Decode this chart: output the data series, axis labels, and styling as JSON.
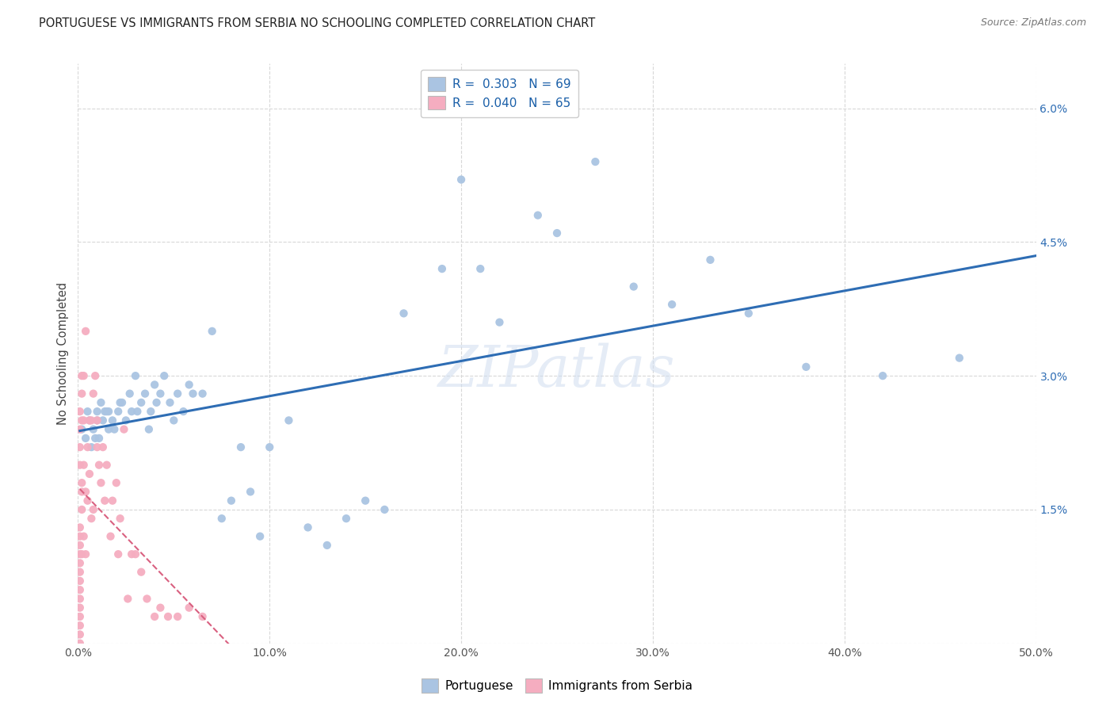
{
  "title": "PORTUGUESE VS IMMIGRANTS FROM SERBIA NO SCHOOLING COMPLETED CORRELATION CHART",
  "source": "Source: ZipAtlas.com",
  "ylabel": "No Schooling Completed",
  "xlim": [
    0,
    0.5
  ],
  "ylim": [
    0,
    0.065
  ],
  "xticks": [
    0.0,
    0.1,
    0.2,
    0.3,
    0.4,
    0.5
  ],
  "yticks": [
    0.0,
    0.015,
    0.03,
    0.045,
    0.06
  ],
  "ytick_labels": [
    "",
    "1.5%",
    "3.0%",
    "4.5%",
    "6.0%"
  ],
  "xtick_labels": [
    "0.0%",
    "10.0%",
    "20.0%",
    "30.0%",
    "40.0%",
    "50.0%"
  ],
  "legend_portuguese_R": "0.303",
  "legend_portuguese_N": "69",
  "legend_serbia_R": "0.040",
  "legend_serbia_N": "65",
  "portuguese_color": "#aac4e2",
  "serbia_color": "#f5adc0",
  "trendline_portuguese_color": "#2e6db4",
  "trendline_serbia_color": "#d96080",
  "background_color": "#ffffff",
  "grid_color": "#d8d8d8",
  "portuguese_x": [
    0.002,
    0.004,
    0.005,
    0.006,
    0.007,
    0.008,
    0.009,
    0.01,
    0.01,
    0.011,
    0.012,
    0.013,
    0.014,
    0.015,
    0.016,
    0.016,
    0.018,
    0.019,
    0.021,
    0.022,
    0.023,
    0.025,
    0.027,
    0.028,
    0.03,
    0.031,
    0.033,
    0.035,
    0.037,
    0.038,
    0.04,
    0.041,
    0.043,
    0.045,
    0.048,
    0.05,
    0.052,
    0.055,
    0.058,
    0.06,
    0.065,
    0.07,
    0.075,
    0.08,
    0.085,
    0.09,
    0.095,
    0.1,
    0.11,
    0.12,
    0.13,
    0.14,
    0.15,
    0.16,
    0.17,
    0.19,
    0.2,
    0.21,
    0.22,
    0.24,
    0.25,
    0.27,
    0.29,
    0.31,
    0.33,
    0.35,
    0.38,
    0.42,
    0.46
  ],
  "portuguese_y": [
    0.024,
    0.023,
    0.026,
    0.025,
    0.022,
    0.024,
    0.023,
    0.026,
    0.025,
    0.023,
    0.027,
    0.025,
    0.026,
    0.026,
    0.026,
    0.024,
    0.025,
    0.024,
    0.026,
    0.027,
    0.027,
    0.025,
    0.028,
    0.026,
    0.03,
    0.026,
    0.027,
    0.028,
    0.024,
    0.026,
    0.029,
    0.027,
    0.028,
    0.03,
    0.027,
    0.025,
    0.028,
    0.026,
    0.029,
    0.028,
    0.028,
    0.035,
    0.014,
    0.016,
    0.022,
    0.017,
    0.012,
    0.022,
    0.025,
    0.013,
    0.011,
    0.014,
    0.016,
    0.015,
    0.037,
    0.042,
    0.052,
    0.042,
    0.036,
    0.048,
    0.046,
    0.054,
    0.04,
    0.038,
    0.043,
    0.037,
    0.031,
    0.03,
    0.032
  ],
  "serbia_x": [
    0.001,
    0.001,
    0.001,
    0.001,
    0.001,
    0.001,
    0.001,
    0.001,
    0.001,
    0.001,
    0.001,
    0.001,
    0.001,
    0.001,
    0.001,
    0.001,
    0.001,
    0.001,
    0.002,
    0.002,
    0.002,
    0.002,
    0.002,
    0.002,
    0.002,
    0.003,
    0.003,
    0.003,
    0.003,
    0.004,
    0.004,
    0.004,
    0.005,
    0.005,
    0.006,
    0.006,
    0.007,
    0.007,
    0.008,
    0.008,
    0.009,
    0.01,
    0.01,
    0.011,
    0.012,
    0.013,
    0.014,
    0.015,
    0.017,
    0.018,
    0.02,
    0.021,
    0.022,
    0.024,
    0.026,
    0.028,
    0.03,
    0.033,
    0.036,
    0.04,
    0.043,
    0.047,
    0.052,
    0.058,
    0.065
  ],
  "serbia_y": [
    0.0,
    0.001,
    0.002,
    0.003,
    0.004,
    0.005,
    0.006,
    0.007,
    0.008,
    0.009,
    0.01,
    0.011,
    0.012,
    0.013,
    0.02,
    0.022,
    0.024,
    0.026,
    0.025,
    0.028,
    0.015,
    0.017,
    0.03,
    0.018,
    0.01,
    0.02,
    0.025,
    0.012,
    0.03,
    0.035,
    0.017,
    0.01,
    0.022,
    0.016,
    0.025,
    0.019,
    0.025,
    0.014,
    0.028,
    0.015,
    0.03,
    0.022,
    0.025,
    0.02,
    0.018,
    0.022,
    0.016,
    0.02,
    0.012,
    0.016,
    0.018,
    0.01,
    0.014,
    0.024,
    0.005,
    0.01,
    0.01,
    0.008,
    0.005,
    0.003,
    0.004,
    0.003,
    0.003,
    0.004,
    0.003
  ],
  "watermark": "ZIPatlas"
}
